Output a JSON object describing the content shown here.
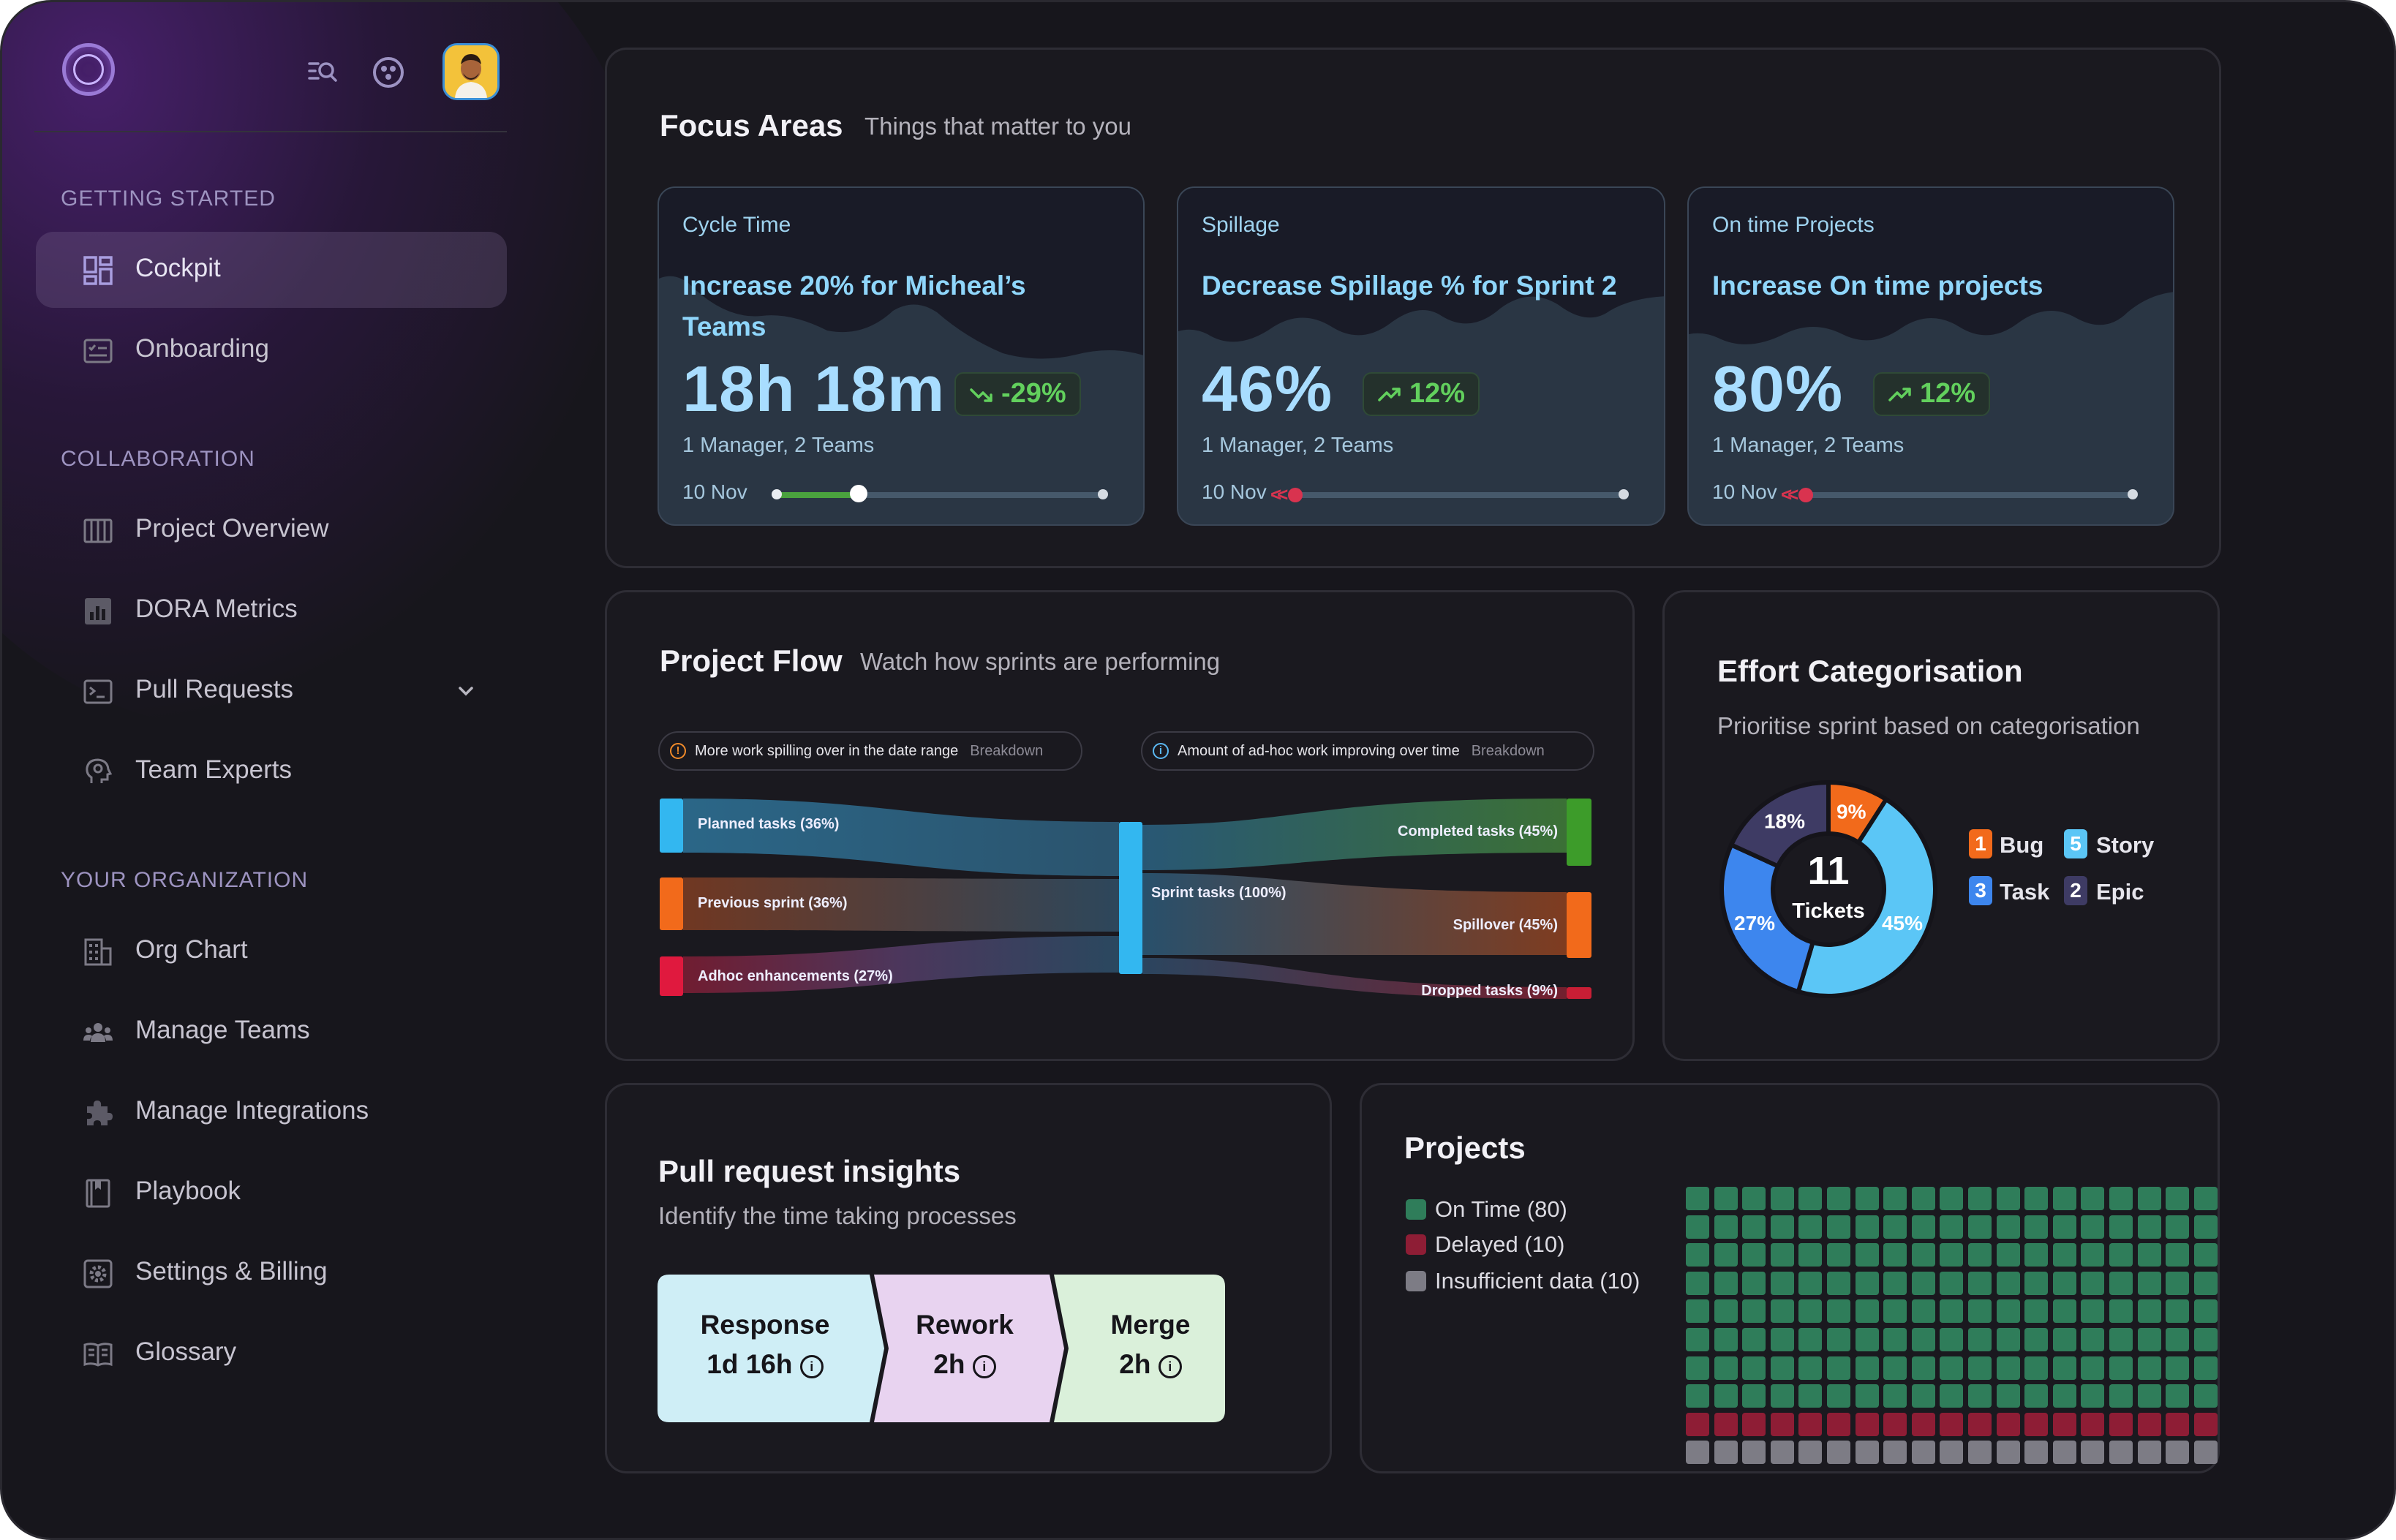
{
  "colors": {
    "accent": "#8fd6fb",
    "on_time": "#2f7d5a",
    "delayed": "#8e1d35",
    "insufficient": "#7d7c85",
    "bug": "#f26a1b",
    "story": "#5bc6f6",
    "task": "#3d86ee",
    "epic": "#3e3b64"
  },
  "sidebar": {
    "sections": [
      {
        "title": "GETTING STARTED",
        "items": [
          {
            "label": "Cockpit",
            "icon": "dashboard-icon"
          },
          {
            "label": "Onboarding",
            "icon": "checklist-icon"
          }
        ]
      },
      {
        "title": "COLLABORATION",
        "items": [
          {
            "label": "Project Overview",
            "icon": "columns-icon"
          },
          {
            "label": "DORA Metrics",
            "icon": "bar-chart-icon"
          },
          {
            "label": "Pull Requests",
            "icon": "terminal-icon"
          },
          {
            "label": "Team Experts",
            "icon": "brain-icon"
          }
        ]
      },
      {
        "title": "YOUR ORGANIZATION",
        "items": [
          {
            "label": "Org Chart",
            "icon": "building-icon"
          },
          {
            "label": "Manage Teams",
            "icon": "team-icon"
          },
          {
            "label": "Manage Integrations",
            "icon": "puzzle-icon"
          },
          {
            "label": "Playbook",
            "icon": "book-icon"
          },
          {
            "label": "Settings & Billing",
            "icon": "settings-icon"
          },
          {
            "label": "Glossary",
            "icon": "open-book-icon"
          }
        ]
      }
    ]
  },
  "focus": {
    "title": "Focus Areas",
    "subtitle": "Things that matter to you",
    "cards": [
      {
        "category": "Cycle Time",
        "title": "Increase 20% for Micheal’s Teams",
        "value": "18h 18m",
        "change": "-29%",
        "trend": "down",
        "meta": "1 Manager, 2 Teams",
        "date": "10 Nov",
        "progress": 0.25
      },
      {
        "category": "Spillage",
        "title": "Decrease Spillage % for Sprint 2",
        "value": "46%",
        "change": "12%",
        "trend": "up",
        "meta": "1 Manager, 2 Teams",
        "date": "10 Nov",
        "progress": 0.0
      },
      {
        "category": "On time Projects",
        "title": "Increase On time projects",
        "value": "80%",
        "change": "12%",
        "trend": "up",
        "meta": "1 Manager, 2 Teams",
        "date": "10 Nov",
        "progress": 0.0
      }
    ]
  },
  "flow": {
    "title": "Project Flow",
    "subtitle": "Watch how sprints are performing",
    "pill_left": {
      "text": "More work spilling over in the date range",
      "action": "Breakdown"
    },
    "pill_right": {
      "text": "Amount of ad-hoc work improving over time",
      "action": "Breakdown"
    },
    "sources": [
      "Planned tasks (36%)",
      "Previous sprint (36%)",
      "Adhoc enhancements (27%)"
    ],
    "middle": "Sprint tasks (100%)",
    "targets": [
      "Completed tasks (45%)",
      "Spillover (45%)",
      "Dropped tasks (9%)"
    ]
  },
  "effort": {
    "title": "Effort Categorisation",
    "subtitle": "Prioritise sprint based on categorisation",
    "center_value": "11",
    "center_label": "Tickets",
    "chart_data": {
      "type": "pie",
      "title": "Effort Categorisation",
      "categories": [
        "Bug",
        "Story",
        "Task",
        "Epic"
      ],
      "values": [
        9,
        45,
        27,
        18
      ],
      "labels": [
        "9%",
        "45%",
        "27%",
        "18%"
      ]
    },
    "legend": [
      {
        "count": "1",
        "name": "Bug"
      },
      {
        "count": "5",
        "name": "Story"
      },
      {
        "count": "3",
        "name": "Task"
      },
      {
        "count": "2",
        "name": "Epic"
      }
    ]
  },
  "pr": {
    "title": "Pull request insights",
    "subtitle": "Identify the time taking processes",
    "stages": [
      {
        "name": "Response",
        "value": "1d 16h"
      },
      {
        "name": "Rework",
        "value": "2h"
      },
      {
        "name": "Merge",
        "value": "2h"
      }
    ]
  },
  "projects": {
    "title": "Projects",
    "legend": [
      "On Time (80)",
      "Delayed (10)",
      "Insufficient data (10)"
    ],
    "counts": {
      "on_time": 80,
      "delayed": 10,
      "insufficient": 10
    }
  }
}
